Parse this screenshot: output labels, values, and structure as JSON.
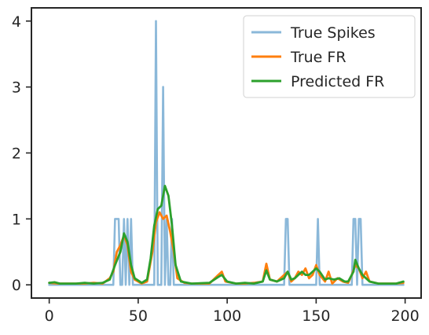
{
  "chart_data": {
    "type": "line",
    "title": "",
    "xlabel": "",
    "ylabel": "",
    "xlim": [
      -10,
      209
    ],
    "ylim": [
      -0.2,
      4.2
    ],
    "x_ticks": [
      0,
      50,
      100,
      150,
      200
    ],
    "y_ticks": [
      0,
      1,
      2,
      3,
      4
    ],
    "grid": false,
    "legend_position": "top-right",
    "series": [
      {
        "name": "True Spikes",
        "color": "#8bb8d9",
        "points": [
          [
            0,
            0
          ],
          [
            36,
            0
          ],
          [
            37,
            1
          ],
          [
            39,
            1
          ],
          [
            40,
            0
          ],
          [
            41,
            0
          ],
          [
            42,
            1
          ],
          [
            43,
            0
          ],
          [
            44,
            1
          ],
          [
            45,
            0
          ],
          [
            46,
            1
          ],
          [
            47,
            0
          ],
          [
            59,
            0
          ],
          [
            60,
            4
          ],
          [
            61,
            0
          ],
          [
            62,
            0
          ],
          [
            63,
            0
          ],
          [
            64,
            3
          ],
          [
            65,
            0
          ],
          [
            66,
            1
          ],
          [
            67,
            0
          ],
          [
            68,
            0
          ],
          [
            69,
            1
          ],
          [
            70,
            0
          ],
          [
            132,
            0
          ],
          [
            133,
            1
          ],
          [
            134,
            1
          ],
          [
            135,
            0
          ],
          [
            150,
            0
          ],
          [
            151,
            1
          ],
          [
            152,
            0
          ],
          [
            170,
            0
          ],
          [
            171,
            1
          ],
          [
            172,
            1
          ],
          [
            173,
            0
          ],
          [
            174,
            1
          ],
          [
            175,
            1
          ],
          [
            176,
            0
          ],
          [
            199,
            0
          ]
        ]
      },
      {
        "name": "True FR",
        "color": "#ff7f0e",
        "points": [
          [
            0,
            0.03
          ],
          [
            5,
            0.02
          ],
          [
            10,
            0.02
          ],
          [
            15,
            0.02
          ],
          [
            20,
            0.02
          ],
          [
            25,
            0.03
          ],
          [
            30,
            0.02
          ],
          [
            34,
            0.1
          ],
          [
            36,
            0.2
          ],
          [
            38,
            0.5
          ],
          [
            40,
            0.6
          ],
          [
            42,
            0.75
          ],
          [
            44,
            0.6
          ],
          [
            46,
            0.2
          ],
          [
            48,
            0.08
          ],
          [
            52,
            0.02
          ],
          [
            55,
            0.05
          ],
          [
            58,
            0.5
          ],
          [
            60,
            0.95
          ],
          [
            62,
            1.1
          ],
          [
            64,
            1.0
          ],
          [
            66,
            1.05
          ],
          [
            68,
            0.8
          ],
          [
            70,
            0.5
          ],
          [
            72,
            0.1
          ],
          [
            76,
            0.03
          ],
          [
            80,
            0.02
          ],
          [
            90,
            0.02
          ],
          [
            95,
            0.15
          ],
          [
            97,
            0.2
          ],
          [
            99,
            0.05
          ],
          [
            105,
            0.02
          ],
          [
            110,
            0.02
          ],
          [
            115,
            0.03
          ],
          [
            120,
            0.05
          ],
          [
            122,
            0.32
          ],
          [
            124,
            0.08
          ],
          [
            128,
            0.05
          ],
          [
            132,
            0.15
          ],
          [
            134,
            0.2
          ],
          [
            136,
            0.05
          ],
          [
            138,
            0.1
          ],
          [
            140,
            0.2
          ],
          [
            142,
            0.15
          ],
          [
            144,
            0.25
          ],
          [
            146,
            0.1
          ],
          [
            148,
            0.15
          ],
          [
            150,
            0.3
          ],
          [
            152,
            0.15
          ],
          [
            155,
            0.05
          ],
          [
            157,
            0.2
          ],
          [
            159,
            0.02
          ],
          [
            162,
            0.1
          ],
          [
            165,
            0.05
          ],
          [
            168,
            0.03
          ],
          [
            170,
            0.15
          ],
          [
            172,
            0.3
          ],
          [
            174,
            0.25
          ],
          [
            176,
            0.1
          ],
          [
            178,
            0.2
          ],
          [
            180,
            0.05
          ],
          [
            185,
            0.02
          ],
          [
            190,
            0.02
          ],
          [
            195,
            0.02
          ],
          [
            199,
            0.03
          ]
        ]
      },
      {
        "name": "Predicted FR",
        "color": "#2ca02c",
        "points": [
          [
            0,
            0.03
          ],
          [
            3,
            0.04
          ],
          [
            6,
            0.02
          ],
          [
            10,
            0.02
          ],
          [
            15,
            0.02
          ],
          [
            20,
            0.03
          ],
          [
            25,
            0.02
          ],
          [
            30,
            0.03
          ],
          [
            34,
            0.08
          ],
          [
            37,
            0.3
          ],
          [
            40,
            0.5
          ],
          [
            42,
            0.78
          ],
          [
            44,
            0.65
          ],
          [
            46,
            0.3
          ],
          [
            48,
            0.1
          ],
          [
            52,
            0.03
          ],
          [
            55,
            0.08
          ],
          [
            57,
            0.4
          ],
          [
            59,
            0.9
          ],
          [
            61,
            1.15
          ],
          [
            63,
            1.2
          ],
          [
            65,
            1.5
          ],
          [
            67,
            1.35
          ],
          [
            69,
            0.9
          ],
          [
            71,
            0.3
          ],
          [
            74,
            0.05
          ],
          [
            80,
            0.02
          ],
          [
            90,
            0.03
          ],
          [
            95,
            0.12
          ],
          [
            97,
            0.15
          ],
          [
            100,
            0.05
          ],
          [
            105,
            0.02
          ],
          [
            110,
            0.03
          ],
          [
            115,
            0.02
          ],
          [
            120,
            0.05
          ],
          [
            122,
            0.22
          ],
          [
            124,
            0.08
          ],
          [
            128,
            0.05
          ],
          [
            132,
            0.1
          ],
          [
            134,
            0.2
          ],
          [
            136,
            0.08
          ],
          [
            138,
            0.1
          ],
          [
            140,
            0.15
          ],
          [
            142,
            0.2
          ],
          [
            144,
            0.15
          ],
          [
            146,
            0.15
          ],
          [
            148,
            0.2
          ],
          [
            150,
            0.25
          ],
          [
            152,
            0.2
          ],
          [
            155,
            0.08
          ],
          [
            157,
            0.1
          ],
          [
            160,
            0.08
          ],
          [
            163,
            0.1
          ],
          [
            166,
            0.05
          ],
          [
            168,
            0.05
          ],
          [
            171,
            0.2
          ],
          [
            172,
            0.38
          ],
          [
            174,
            0.25
          ],
          [
            176,
            0.15
          ],
          [
            178,
            0.1
          ],
          [
            180,
            0.05
          ],
          [
            185,
            0.02
          ],
          [
            190,
            0.02
          ],
          [
            195,
            0.02
          ],
          [
            199,
            0.05
          ]
        ]
      }
    ]
  }
}
